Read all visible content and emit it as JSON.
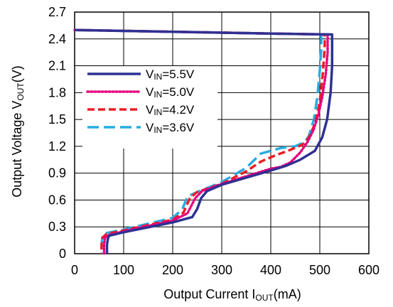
{
  "chart_data": {
    "type": "line",
    "xlabel": {
      "main": "Output Current I",
      "sub": "OUT",
      "tail": "(mA)"
    },
    "ylabel": {
      "main": "Output Voltage V",
      "sub": "OUT",
      "tail": "(V)"
    },
    "xlim": [
      0,
      600
    ],
    "ylim": [
      0,
      2.7
    ],
    "xticks": [
      "0",
      "100",
      "200",
      "300",
      "400",
      "500",
      "600"
    ],
    "yticks": [
      "0",
      "0.3",
      "0.6",
      "0.9",
      "1.2",
      "1.5",
      "1.8",
      "2.1",
      "2.4",
      "2.7"
    ],
    "grid": true,
    "legend_position": "left",
    "series": [
      {
        "name": "VIN=5.5V",
        "legend": {
          "main": "V",
          "sub": "IN",
          "tail": "=5.5V"
        },
        "color": "#2e3192",
        "style": "solid",
        "points": [
          [
            0,
            2.5
          ],
          [
            200,
            2.48
          ],
          [
            400,
            2.46
          ],
          [
            525,
            2.45
          ],
          [
            525,
            2.1
          ],
          [
            522,
            1.8
          ],
          [
            515,
            1.5
          ],
          [
            505,
            1.3
          ],
          [
            490,
            1.15
          ],
          [
            460,
            1.05
          ],
          [
            430,
            0.98
          ],
          [
            400,
            0.93
          ],
          [
            300,
            0.77
          ],
          [
            270,
            0.7
          ],
          [
            258,
            0.62
          ],
          [
            250,
            0.5
          ],
          [
            240,
            0.41
          ],
          [
            200,
            0.35
          ],
          [
            100,
            0.24
          ],
          [
            70,
            0.2
          ],
          [
            68,
            0.17
          ],
          [
            66,
            0.1
          ],
          [
            66,
            0.0
          ]
        ]
      },
      {
        "name": "VIN=5.0V",
        "legend": {
          "main": "V",
          "sub": "IN",
          "tail": "=5.0V"
        },
        "color": "#e6007e",
        "style": "dotted",
        "points": [
          [
            0,
            2.5
          ],
          [
            200,
            2.48
          ],
          [
            400,
            2.46
          ],
          [
            516,
            2.45
          ],
          [
            516,
            2.25
          ],
          [
            512,
            2.0
          ],
          [
            505,
            1.75
          ],
          [
            497,
            1.55
          ],
          [
            487,
            1.38
          ],
          [
            475,
            1.25
          ],
          [
            460,
            1.13
          ],
          [
            440,
            1.02
          ],
          [
            420,
            0.97
          ],
          [
            400,
            0.95
          ],
          [
            300,
            0.78
          ],
          [
            260,
            0.7
          ],
          [
            246,
            0.62
          ],
          [
            230,
            0.45
          ],
          [
            200,
            0.37
          ],
          [
            100,
            0.25
          ],
          [
            70,
            0.21
          ],
          [
            62,
            0.18
          ],
          [
            60,
            0.1
          ],
          [
            60,
            0.0
          ]
        ]
      },
      {
        "name": "VIN=4.2V",
        "legend": {
          "main": "V",
          "sub": "IN",
          "tail": "=4.2V"
        },
        "color": "#ed1c24",
        "style": "dashed",
        "points": [
          [
            0,
            2.5
          ],
          [
            200,
            2.48
          ],
          [
            400,
            2.46
          ],
          [
            510,
            2.45
          ],
          [
            510,
            2.3
          ],
          [
            506,
            2.0
          ],
          [
            500,
            1.7
          ],
          [
            490,
            1.45
          ],
          [
            478,
            1.3
          ],
          [
            465,
            1.22
          ],
          [
            440,
            1.16
          ],
          [
            410,
            1.1
          ],
          [
            380,
            1.03
          ],
          [
            350,
            0.92
          ],
          [
            300,
            0.78
          ],
          [
            250,
            0.69
          ],
          [
            235,
            0.62
          ],
          [
            222,
            0.46
          ],
          [
            200,
            0.38
          ],
          [
            100,
            0.26
          ],
          [
            65,
            0.22
          ],
          [
            57,
            0.18
          ],
          [
            55,
            0.1
          ],
          [
            55,
            0.0
          ]
        ]
      },
      {
        "name": "VIN=3.6V",
        "legend": {
          "main": "V",
          "sub": "IN",
          "tail": "=3.6V"
        },
        "color": "#29abe2",
        "style": "longdash",
        "points": [
          [
            0,
            2.5
          ],
          [
            200,
            2.48
          ],
          [
            400,
            2.46
          ],
          [
            503,
            2.45
          ],
          [
            503,
            2.3
          ],
          [
            500,
            2.05
          ],
          [
            495,
            1.75
          ],
          [
            488,
            1.5
          ],
          [
            478,
            1.32
          ],
          [
            470,
            1.25
          ],
          [
            450,
            1.2
          ],
          [
            420,
            1.18
          ],
          [
            380,
            1.12
          ],
          [
            350,
            0.96
          ],
          [
            300,
            0.8
          ],
          [
            255,
            0.7
          ],
          [
            230,
            0.64
          ],
          [
            220,
            0.5
          ],
          [
            200,
            0.4
          ],
          [
            100,
            0.27
          ],
          [
            65,
            0.23
          ],
          [
            57,
            0.2
          ],
          [
            55,
            0.1
          ],
          [
            55,
            0.0
          ]
        ]
      }
    ]
  }
}
